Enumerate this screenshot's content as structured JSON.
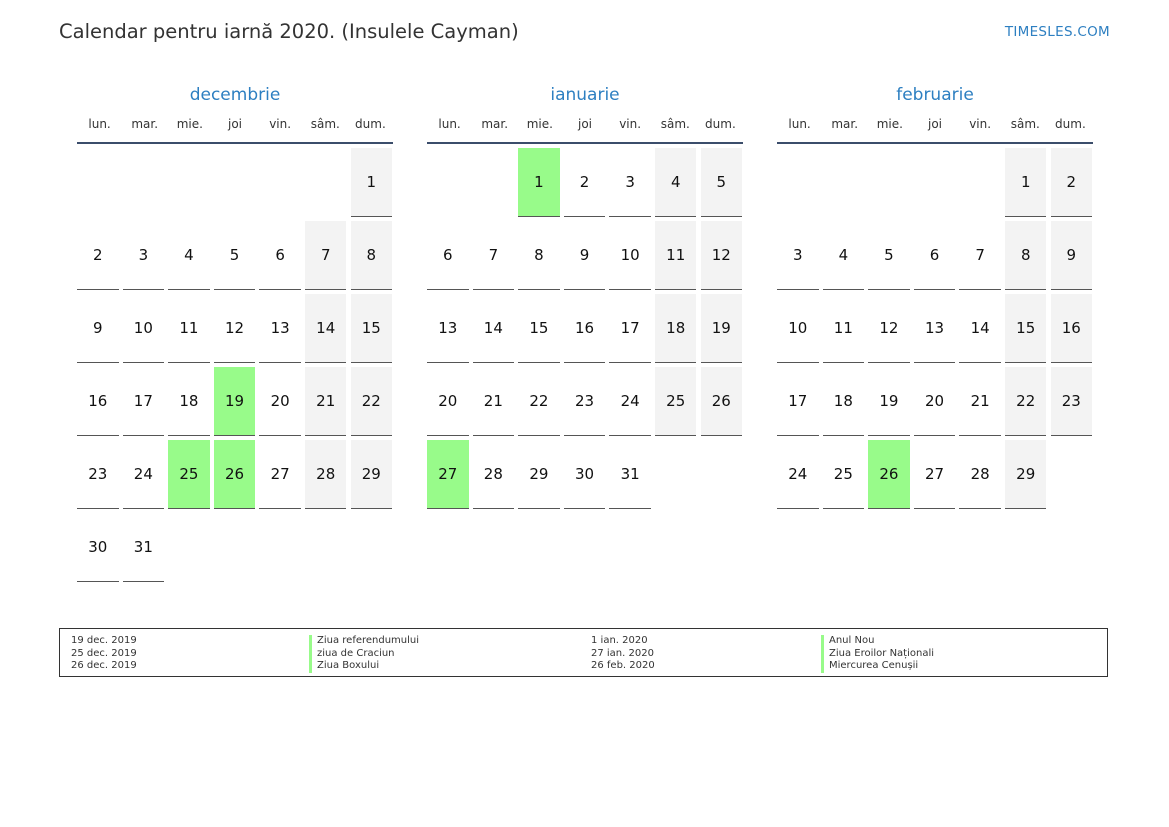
{
  "header": {
    "title": "Calendar pentru iarnă 2020. (Insulele Cayman)",
    "site": "TIMESLES.COM"
  },
  "colors": {
    "accent": "#2d7fc1",
    "holiday": "#98fb8a",
    "weekend": "#f3f3f3"
  },
  "weekdays": [
    "lun.",
    "mar.",
    "mie.",
    "joi",
    "vin.",
    "sâm.",
    "dum."
  ],
  "months": [
    {
      "name": "decembrie",
      "first_weekday_index": 6,
      "days": 31,
      "holidays": [
        19,
        25,
        26
      ]
    },
    {
      "name": "ianuarie",
      "first_weekday_index": 2,
      "days": 31,
      "holidays": [
        1,
        27
      ]
    },
    {
      "name": "februarie",
      "first_weekday_index": 5,
      "days": 29,
      "holidays": [
        26
      ]
    }
  ],
  "legend": {
    "left": {
      "dates": [
        "19 dec. 2019",
        "25 dec. 2019",
        "26 dec. 2019"
      ],
      "names": [
        "Ziua referendumului",
        "ziua de Craciun",
        "Ziua Boxului"
      ]
    },
    "right": {
      "dates": [
        "1 ian. 2020",
        "27 ian. 2020",
        "26 feb. 2020"
      ],
      "names": [
        "Anul Nou",
        "Ziua Eroilor Naționali",
        "Miercurea Cenușii"
      ]
    }
  }
}
